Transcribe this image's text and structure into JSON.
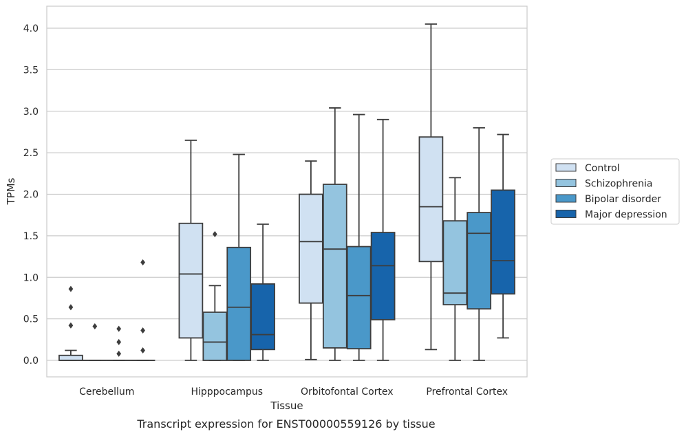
{
  "caption": "Transcript expression for ENST00000559126 by tissue",
  "chart_data": {
    "type": "boxplot",
    "xlabel": "Tissue",
    "ylabel": "TPMs",
    "ylim": [
      -0.2,
      4.25
    ],
    "yticks": [
      "0.0",
      "0.5",
      "1.0",
      "1.5",
      "2.0",
      "2.5",
      "3.0",
      "3.5",
      "4.0"
    ],
    "grid": true,
    "legend_position": "right",
    "categories": [
      "Cerebellum",
      "Hipppocampus",
      "Orbitofontal Cortex",
      "Prefrontal Cortex"
    ],
    "series": [
      {
        "name": "Control",
        "color": "#d0e1f2",
        "boxes": [
          {
            "whislo": 0.0,
            "q1": 0.0,
            "med": 0.0,
            "q3": 0.06,
            "whishi": 0.12,
            "fliers": [
              0.42,
              0.64,
              0.86
            ]
          },
          {
            "whislo": 0.0,
            "q1": 0.27,
            "med": 1.04,
            "q3": 1.65,
            "whishi": 2.65,
            "fliers": []
          },
          {
            "whislo": 0.01,
            "q1": 0.69,
            "med": 1.43,
            "q3": 2.0,
            "whishi": 2.4,
            "fliers": []
          },
          {
            "whislo": 0.13,
            "q1": 1.19,
            "med": 1.85,
            "q3": 2.69,
            "whishi": 4.05,
            "fliers": []
          }
        ]
      },
      {
        "name": "Schizophrenia",
        "color": "#94c4df",
        "boxes": [
          {
            "whislo": 0.0,
            "q1": 0.0,
            "med": 0.0,
            "q3": 0.0,
            "whishi": 0.0,
            "fliers": [
              0.41
            ]
          },
          {
            "whislo": 0.0,
            "q1": 0.0,
            "med": 0.22,
            "q3": 0.58,
            "whishi": 0.9,
            "fliers": [
              1.52
            ]
          },
          {
            "whislo": 0.0,
            "q1": 0.15,
            "med": 1.34,
            "q3": 2.12,
            "whishi": 3.04,
            "fliers": []
          },
          {
            "whislo": 0.0,
            "q1": 0.67,
            "med": 0.81,
            "q3": 1.68,
            "whishi": 2.2,
            "fliers": []
          }
        ]
      },
      {
        "name": "Bipolar disorder",
        "color": "#4a98c9",
        "boxes": [
          {
            "whislo": 0.0,
            "q1": 0.0,
            "med": 0.0,
            "q3": 0.0,
            "whishi": 0.0,
            "fliers": [
              0.08,
              0.22,
              0.38
            ]
          },
          {
            "whislo": 0.0,
            "q1": 0.0,
            "med": 0.64,
            "q3": 1.36,
            "whishi": 2.48,
            "fliers": []
          },
          {
            "whislo": 0.0,
            "q1": 0.14,
            "med": 0.78,
            "q3": 1.37,
            "whishi": 2.96,
            "fliers": []
          },
          {
            "whislo": 0.0,
            "q1": 0.62,
            "med": 1.53,
            "q3": 1.78,
            "whishi": 2.8,
            "fliers": []
          }
        ]
      },
      {
        "name": "Major depression",
        "color": "#1764ab",
        "boxes": [
          {
            "whislo": 0.0,
            "q1": 0.0,
            "med": 0.0,
            "q3": 0.0,
            "whishi": 0.0,
            "fliers": [
              0.12,
              0.36,
              1.18
            ]
          },
          {
            "whislo": 0.0,
            "q1": 0.13,
            "med": 0.31,
            "q3": 0.92,
            "whishi": 1.64,
            "fliers": []
          },
          {
            "whislo": 0.0,
            "q1": 0.49,
            "med": 1.14,
            "q3": 1.54,
            "whishi": 2.9,
            "fliers": []
          },
          {
            "whislo": 0.27,
            "q1": 0.8,
            "med": 1.2,
            "q3": 2.05,
            "whishi": 2.72,
            "fliers": []
          }
        ]
      }
    ]
  }
}
